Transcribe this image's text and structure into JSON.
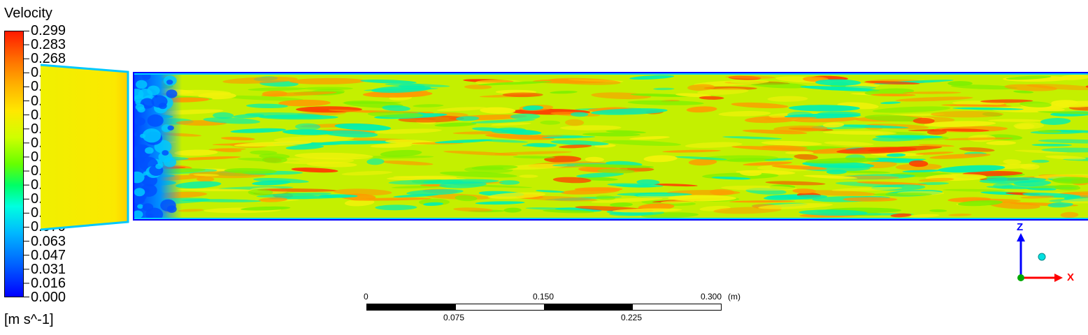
{
  "legend": {
    "title": "Velocity",
    "unit": "[m s^-1]",
    "ticks": [
      "0.299",
      "0.283",
      "0.268",
      "0.252",
      "0.236",
      "0.220",
      "0.205",
      "0.189",
      "0.173",
      "0.157",
      "0.142",
      "0.126",
      "0.110",
      "0.094",
      "0.079",
      "0.063",
      "0.047",
      "0.031",
      "0.016",
      "0.000"
    ]
  },
  "scale": {
    "top_labels": [
      "0",
      "0.150",
      "0.300"
    ],
    "unit": "(m)",
    "bottom_labels": [
      "0.075",
      "0.225"
    ]
  },
  "triad": {
    "z_label": "Z",
    "x_label": "X",
    "colors": {
      "z": "#0000ff",
      "x": "#ff0000",
      "origin": "#00aa00",
      "view": "#00e0e0"
    }
  },
  "field": {
    "colors": {
      "background": "#c4f000",
      "inlet": "#f2f20a",
      "wall": "#0000ff",
      "low": "#0050ff",
      "medium_low": "#00f0b0",
      "high": "#ff9a00",
      "peak": "#ff3a00"
    }
  }
}
